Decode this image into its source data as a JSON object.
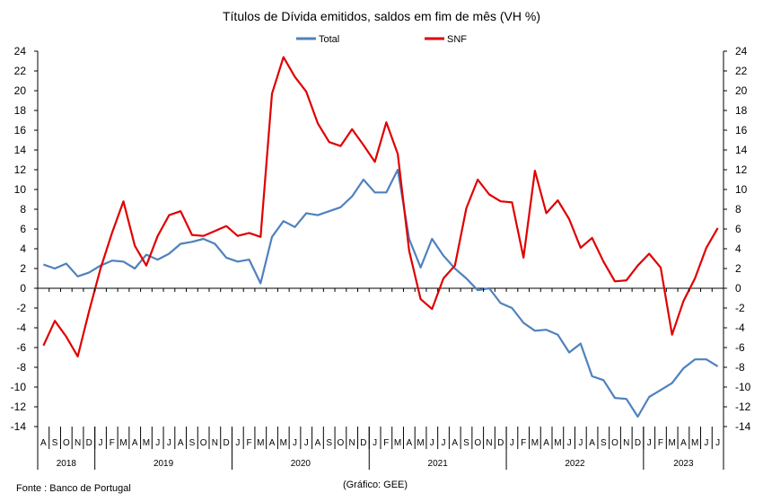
{
  "chart_data": {
    "type": "line",
    "title": "Títulos de Dívida emitidos, saldos em fim de mês  (VH %)",
    "source": "Fonte : Banco de Portugal",
    "credit": "(Gráfico: GEE)",
    "ylim": [
      -14,
      24
    ],
    "yticks": [
      -14,
      -12,
      -10,
      -8,
      -6,
      -4,
      -2,
      0,
      2,
      4,
      6,
      8,
      10,
      12,
      14,
      16,
      18,
      20,
      22,
      24
    ],
    "grid": false,
    "legend_position": "top-center",
    "months": [
      "A",
      "S",
      "O",
      "N",
      "D",
      "J",
      "F",
      "M",
      "A",
      "M",
      "J",
      "J",
      "A",
      "S",
      "O",
      "N",
      "D",
      "J",
      "F",
      "M",
      "A",
      "M",
      "J",
      "J",
      "A",
      "S",
      "O",
      "N",
      "D",
      "J",
      "F",
      "M",
      "A",
      "M",
      "J",
      "J",
      "A",
      "S",
      "O",
      "N",
      "D",
      "J",
      "F",
      "M",
      "A",
      "M",
      "J",
      "J",
      "A",
      "S",
      "O",
      "N",
      "D",
      "J",
      "F",
      "M",
      "A",
      "M",
      "J",
      "J"
    ],
    "years": [
      {
        "label": "2018",
        "start": 0,
        "count": 5
      },
      {
        "label": "2019",
        "start": 5,
        "count": 12
      },
      {
        "label": "2020",
        "start": 17,
        "count": 12
      },
      {
        "label": "2021",
        "start": 29,
        "count": 12
      },
      {
        "label": "2022",
        "start": 41,
        "count": 12
      },
      {
        "label": "2023",
        "start": 53,
        "count": 7
      }
    ],
    "series": [
      {
        "name": "Total",
        "color": "#4f81bd",
        "values": [
          2.4,
          2.0,
          2.5,
          1.2,
          1.6,
          2.3,
          2.8,
          2.7,
          2.0,
          3.4,
          2.9,
          3.5,
          4.5,
          4.7,
          5.0,
          4.5,
          3.1,
          2.7,
          2.9,
          0.5,
          5.2,
          6.8,
          6.2,
          7.6,
          7.4,
          7.8,
          8.2,
          9.3,
          11.0,
          9.7,
          9.7,
          12.0,
          5.0,
          2.1,
          5.0,
          3.3,
          2.0,
          1.0,
          -0.2,
          0.0,
          -1.5,
          -2.0,
          -3.5,
          -4.3,
          -4.2,
          -4.7,
          -6.5,
          -5.6,
          -8.9,
          -9.3,
          -11.1,
          -11.2,
          -13.0,
          -11.0,
          -10.3,
          -9.6,
          -8.1,
          -7.2,
          -7.2,
          -7.9
        ]
      },
      {
        "name": "SNF",
        "color": "#e00000",
        "values": [
          -5.8,
          -3.3,
          -4.9,
          -6.9,
          -2.3,
          2.0,
          5.6,
          8.8,
          4.3,
          2.3,
          5.3,
          7.4,
          7.8,
          5.4,
          5.3,
          5.8,
          6.3,
          5.3,
          5.6,
          5.2,
          19.7,
          23.4,
          21.4,
          19.9,
          16.7,
          14.8,
          14.4,
          16.1,
          14.5,
          12.8,
          16.8,
          13.6,
          3.8,
          -1.1,
          -2.1,
          1.0,
          2.3,
          8.1,
          11.0,
          9.5,
          8.8,
          8.7,
          3.1,
          11.9,
          7.6,
          8.9,
          7.0,
          4.1,
          5.1,
          2.7,
          0.7,
          0.8,
          2.3,
          3.5,
          2.1,
          -4.7,
          -1.3,
          1.0,
          4.1,
          6.1
        ]
      }
    ]
  }
}
